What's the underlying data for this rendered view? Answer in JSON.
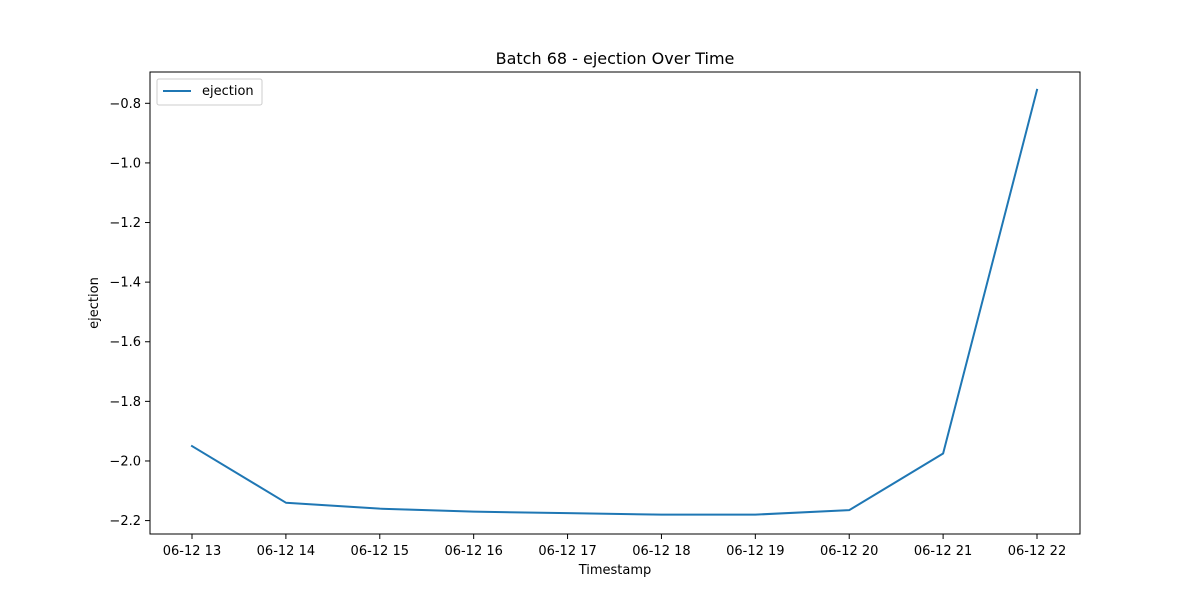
{
  "chart_data": {
    "type": "line",
    "title": "Batch 68 - ejection Over Time",
    "xlabel": "Timestamp",
    "ylabel": "ejection",
    "x": [
      "06-12 13",
      "06-12 14",
      "06-12 15",
      "06-12 16",
      "06-12 17",
      "06-12 18",
      "06-12 19",
      "06-12 20",
      "06-12 21",
      "06-12 22"
    ],
    "series": [
      {
        "name": "ejection",
        "color": "#1f77b4",
        "values": [
          -1.95,
          -2.14,
          -2.16,
          -2.17,
          -2.175,
          -2.18,
          -2.18,
          -2.165,
          -1.975,
          -0.755
        ]
      }
    ],
    "yticks": [
      -2.2,
      -2.0,
      -1.8,
      -1.6,
      -1.4,
      -1.2,
      -1.0,
      -0.8
    ],
    "ytick_labels": [
      "−2.2",
      "−2.0",
      "−1.8",
      "−1.6",
      "−1.4",
      "−1.2",
      "−1.0",
      "−0.8"
    ],
    "ylim": [
      -2.245,
      -0.695
    ],
    "grid": false,
    "legend": "top-left"
  }
}
